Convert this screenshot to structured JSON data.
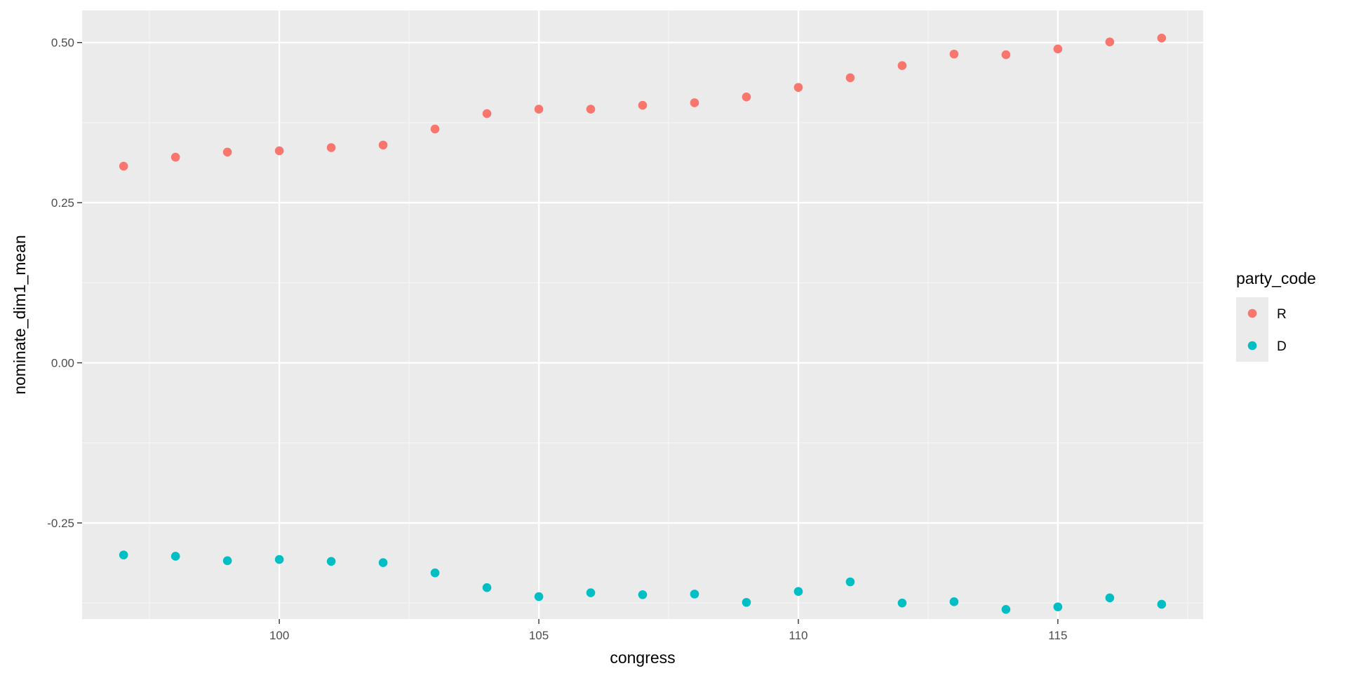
{
  "chart_data": {
    "type": "scatter",
    "xlabel": "congress",
    "ylabel": "nominate_dim1_mean",
    "xlim": [
      96.2,
      117.8
    ],
    "ylim": [
      -0.4,
      0.55
    ],
    "x_ticks": [
      100,
      105,
      110,
      115
    ],
    "x_tick_labels": [
      "100",
      "105",
      "110",
      "115"
    ],
    "y_ticks": [
      -0.25,
      0.0,
      0.25,
      0.5
    ],
    "y_tick_labels": [
      "-0.25",
      "0.00",
      "0.25",
      "0.50"
    ],
    "grid": true,
    "legend": {
      "title": "party_code",
      "position": "right",
      "entries": [
        "R",
        "D"
      ]
    },
    "x": [
      97,
      98,
      99,
      100,
      101,
      102,
      103,
      104,
      105,
      106,
      107,
      108,
      109,
      110,
      111,
      112,
      113,
      114,
      115,
      116,
      117
    ],
    "series": [
      {
        "name": "R",
        "color": "#F8766D",
        "values": [
          0.307,
          0.321,
          0.329,
          0.331,
          0.336,
          0.34,
          0.365,
          0.389,
          0.396,
          0.396,
          0.402,
          0.406,
          0.415,
          0.43,
          0.445,
          0.464,
          0.482,
          0.481,
          0.49,
          0.501,
          0.507
        ]
      },
      {
        "name": "D",
        "color": "#00BFC4",
        "values": [
          -0.3,
          -0.302,
          -0.309,
          -0.307,
          -0.31,
          -0.312,
          -0.328,
          -0.351,
          -0.365,
          -0.359,
          -0.362,
          -0.361,
          -0.374,
          -0.357,
          -0.342,
          -0.375,
          -0.373,
          -0.385,
          -0.381,
          -0.367,
          -0.377
        ]
      }
    ]
  }
}
